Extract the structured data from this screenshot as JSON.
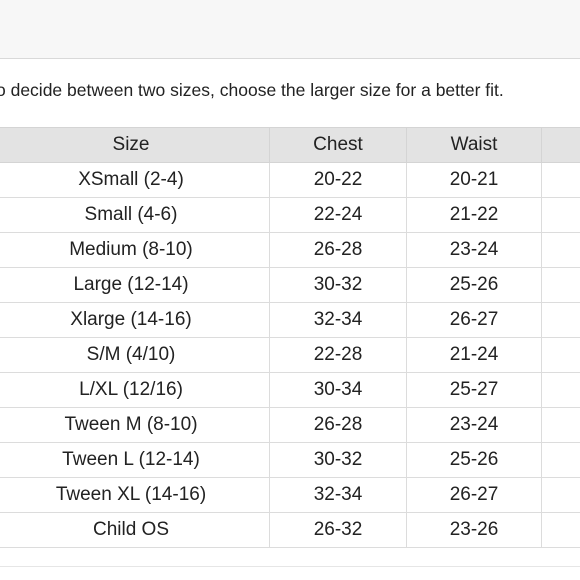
{
  "note": "o decide between two sizes, choose the larger size for a better fit.",
  "table": {
    "headers": [
      "Size",
      "Chest",
      "Waist",
      ""
    ],
    "rows": [
      [
        "XSmall (2-4)",
        "20-22",
        "20-21",
        ""
      ],
      [
        "Small (4-6)",
        "22-24",
        "21-22",
        ""
      ],
      [
        "Medium (8-10)",
        "26-28",
        "23-24",
        ""
      ],
      [
        "Large (12-14)",
        "30-32",
        "25-26",
        ""
      ],
      [
        "Xlarge (14-16)",
        "32-34",
        "26-27",
        ""
      ],
      [
        "S/M (4/10)",
        "22-28",
        "21-24",
        ""
      ],
      [
        "L/XL (12/16)",
        "30-34",
        "25-27",
        ""
      ],
      [
        "Tween M (8-10)",
        "26-28",
        "23-24",
        ""
      ],
      [
        "Tween L (12-14)",
        "30-32",
        "25-26",
        ""
      ],
      [
        "Tween XL (14-16)",
        "32-34",
        "26-27",
        ""
      ],
      [
        "Child OS",
        "26-32",
        "23-26",
        ""
      ]
    ]
  }
}
